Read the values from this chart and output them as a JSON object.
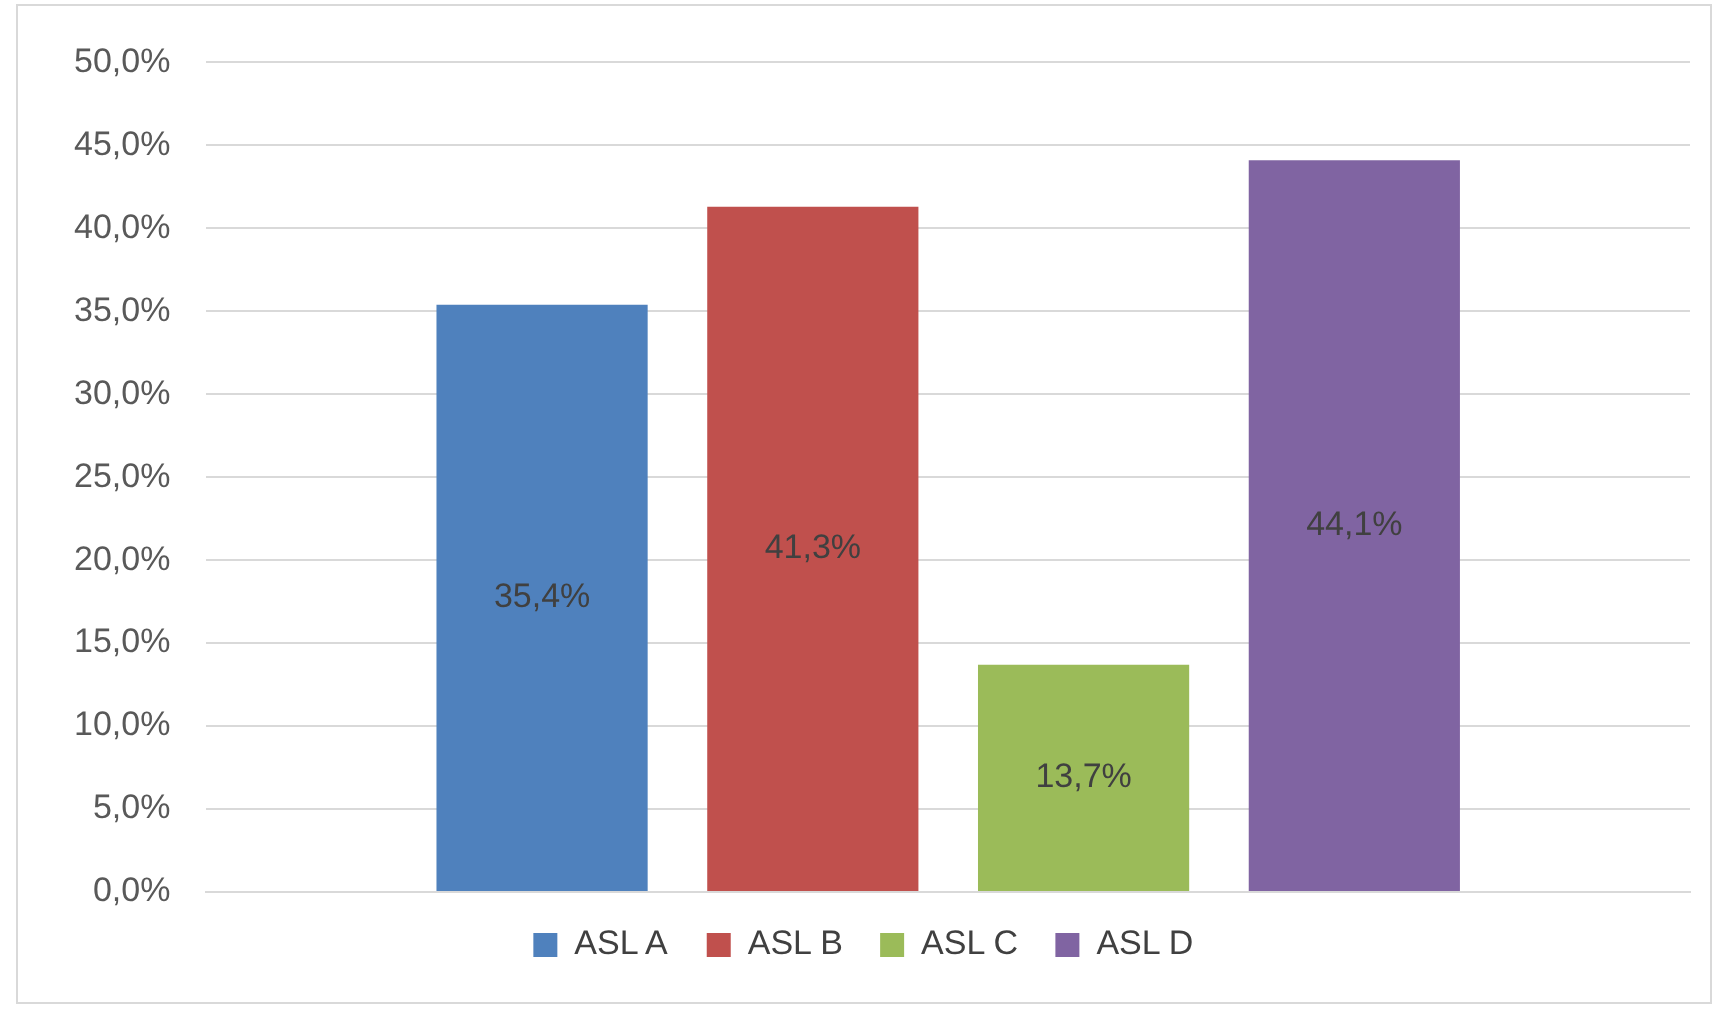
{
  "chart_data": {
    "type": "bar",
    "categories": [
      null
    ],
    "series": [
      {
        "name": "ASL A",
        "color": "#4f81bd",
        "values": [
          35.4
        ],
        "value_labels": [
          "35,4%"
        ]
      },
      {
        "name": "ASL B",
        "color": "#c0504d",
        "values": [
          41.3
        ],
        "value_labels": [
          "41,3%"
        ]
      },
      {
        "name": "ASL C",
        "color": "#9bbb59",
        "values": [
          13.7
        ],
        "value_labels": [
          "13,7%"
        ]
      },
      {
        "name": "ASL D",
        "color": "#8064a2",
        "values": [
          44.1
        ],
        "value_labels": [
          "44,1%"
        ]
      }
    ],
    "ylim": [
      0,
      50
    ],
    "yticks": [
      {
        "value": 0,
        "label": "0,0%"
      },
      {
        "value": 5,
        "label": "5,0%"
      },
      {
        "value": 10,
        "label": "10,0%"
      },
      {
        "value": 15,
        "label": "15,0%"
      },
      {
        "value": 20,
        "label": "20,0%"
      },
      {
        "value": 25,
        "label": "25,0%"
      },
      {
        "value": 30,
        "label": "30,0%"
      },
      {
        "value": 35,
        "label": "35,0%"
      },
      {
        "value": 40,
        "label": "40,0%"
      },
      {
        "value": 45,
        "label": "45,0%"
      },
      {
        "value": 50,
        "label": "50,0%"
      }
    ],
    "grid": "y",
    "legend": "bottom"
  }
}
